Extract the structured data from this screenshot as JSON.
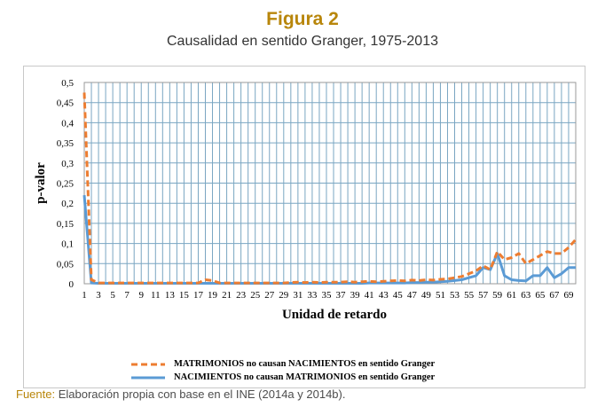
{
  "figure": {
    "title": "Figura 2",
    "subtitle": "Causalidad en sentido Granger, 1975-2013",
    "title_color": "#b8860b"
  },
  "source": {
    "label": "Fuente:",
    "text": " Elaboración propia con base en el INE (2014a y 2014b).",
    "label_color": "#b8860b"
  },
  "chart_data": {
    "type": "line",
    "xlabel": "Unidad de retardo",
    "ylabel": "p-valor",
    "ylim": [
      0,
      0.5
    ],
    "xlim": [
      1,
      70
    ],
    "yticks": [
      "0",
      "0,05",
      "0,1",
      "0,15",
      "0,2",
      "0,25",
      "0,3",
      "0,35",
      "0,4",
      "0,45",
      "0,5"
    ],
    "xticks": [
      "1",
      "3",
      "5",
      "7",
      "9",
      "11",
      "13",
      "15",
      "17",
      "19",
      "21",
      "23",
      "25",
      "27",
      "29",
      "31",
      "33",
      "35",
      "37",
      "39",
      "41",
      "43",
      "45",
      "47",
      "49",
      "51",
      "53",
      "55",
      "57",
      "59",
      "61",
      "63",
      "65",
      "67",
      "69"
    ],
    "grid": true,
    "grid_color": "#7aa6c2",
    "legend_position": "bottom",
    "series": [
      {
        "name": "MATRIMONIOS no causan  NACIMIENTOS en sentido Granger",
        "color": "#ed7d31",
        "style": "dashed",
        "x": [
          1,
          2,
          3,
          4,
          5,
          6,
          7,
          8,
          9,
          10,
          11,
          12,
          13,
          14,
          15,
          16,
          17,
          18,
          19,
          20,
          21,
          22,
          23,
          24,
          25,
          26,
          27,
          28,
          29,
          30,
          31,
          32,
          33,
          34,
          35,
          36,
          37,
          38,
          39,
          40,
          41,
          42,
          43,
          44,
          45,
          46,
          47,
          48,
          49,
          50,
          51,
          52,
          53,
          54,
          55,
          56,
          57,
          58,
          59,
          60,
          61,
          62,
          63,
          64,
          65,
          66,
          67,
          68,
          69,
          70
        ],
        "y": [
          0.475,
          0.01,
          0.002,
          0.002,
          0.002,
          0.002,
          0.002,
          0.002,
          0.002,
          0.002,
          0.002,
          0.002,
          0.002,
          0.002,
          0.002,
          0.002,
          0.002,
          0.01,
          0.008,
          0.002,
          0.002,
          0.002,
          0.002,
          0.002,
          0.002,
          0.002,
          0.002,
          0.002,
          0.002,
          0.003,
          0.004,
          0.003,
          0.004,
          0.003,
          0.004,
          0.004,
          0.004,
          0.005,
          0.004,
          0.005,
          0.006,
          0.005,
          0.006,
          0.007,
          0.008,
          0.007,
          0.009,
          0.008,
          0.01,
          0.009,
          0.011,
          0.012,
          0.015,
          0.018,
          0.025,
          0.032,
          0.045,
          0.035,
          0.08,
          0.06,
          0.065,
          0.075,
          0.05,
          0.06,
          0.07,
          0.08,
          0.075,
          0.075,
          0.09,
          0.11
        ]
      },
      {
        "name": "NACIMIENTOS no causan MATRIMONIOS en sentido Granger",
        "color": "#5b9bd5",
        "style": "solid",
        "x": [
          1,
          2,
          3,
          4,
          5,
          6,
          7,
          8,
          9,
          10,
          11,
          12,
          13,
          14,
          15,
          16,
          17,
          18,
          19,
          20,
          21,
          22,
          23,
          24,
          25,
          26,
          27,
          28,
          29,
          30,
          31,
          32,
          33,
          34,
          35,
          36,
          37,
          38,
          39,
          40,
          41,
          42,
          43,
          44,
          45,
          46,
          47,
          48,
          49,
          50,
          51,
          52,
          53,
          54,
          55,
          56,
          57,
          58,
          59,
          60,
          61,
          62,
          63,
          64,
          65,
          66,
          67,
          68,
          69,
          70
        ],
        "y": [
          0.22,
          0.002,
          0.001,
          0.001,
          0.001,
          0.001,
          0.001,
          0.001,
          0.001,
          0.001,
          0.001,
          0.001,
          0.001,
          0.001,
          0.001,
          0.001,
          0.001,
          0.001,
          0.001,
          0.001,
          0.001,
          0.001,
          0.001,
          0.001,
          0.001,
          0.001,
          0.001,
          0.001,
          0.001,
          0.001,
          0.001,
          0.001,
          0.001,
          0.001,
          0.001,
          0.001,
          0.001,
          0.001,
          0.001,
          0.001,
          0.002,
          0.002,
          0.002,
          0.002,
          0.002,
          0.002,
          0.003,
          0.003,
          0.004,
          0.004,
          0.005,
          0.006,
          0.008,
          0.01,
          0.015,
          0.02,
          0.04,
          0.035,
          0.075,
          0.02,
          0.01,
          0.008,
          0.007,
          0.02,
          0.02,
          0.04,
          0.015,
          0.025,
          0.04,
          0.04
        ]
      }
    ]
  }
}
